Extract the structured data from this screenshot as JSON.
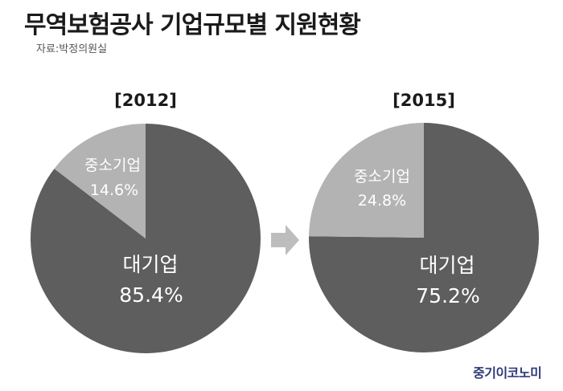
{
  "header": {
    "title": "무역보험공사 기업규모별 지원현황",
    "source": "자료:박정의원실"
  },
  "brand": "중기이코노미",
  "colors": {
    "large_enterprise": "#5e5e5e",
    "sme": "#b3b3b3",
    "arrow": "#bdbdbd",
    "brand": "#2f3a78"
  },
  "chart_data": [
    {
      "type": "pie",
      "title": "[2012]",
      "slices": [
        {
          "label": "중소기업",
          "value": 14.6,
          "value_label": "14.6%"
        },
        {
          "label": "대기업",
          "value": 85.4,
          "value_label": "85.4%"
        }
      ]
    },
    {
      "type": "pie",
      "title": "[2015]",
      "slices": [
        {
          "label": "중소기업",
          "value": 24.8,
          "value_label": "24.8%"
        },
        {
          "label": "대기업",
          "value": 75.2,
          "value_label": "75.2%"
        }
      ]
    }
  ]
}
